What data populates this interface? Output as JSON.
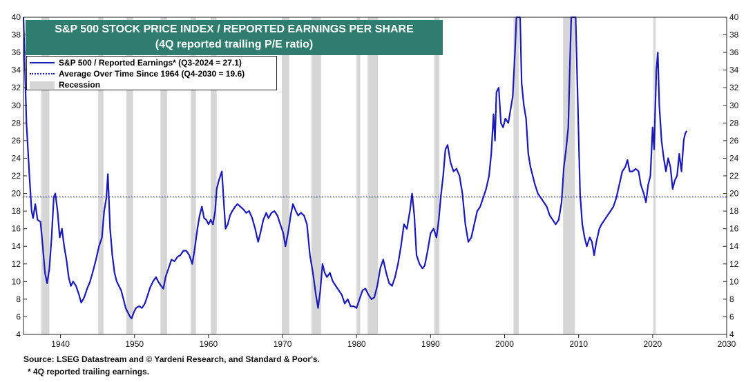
{
  "chart_data": {
    "type": "line",
    "title": "S&P 500 STOCK PRICE INDEX / REPORTED EARNINGS PER SHARE",
    "subtitle": "(4Q reported trailing P/E ratio)",
    "xlim": [
      1935,
      2030
    ],
    "ylim": [
      4,
      40
    ],
    "x_ticks": [
      1940,
      1950,
      1960,
      1970,
      1980,
      1990,
      2000,
      2010,
      2020,
      2030
    ],
    "y_ticks": [
      4,
      6,
      8,
      10,
      12,
      14,
      16,
      18,
      20,
      22,
      24,
      26,
      28,
      30,
      32,
      34,
      36,
      38,
      40
    ],
    "grid": false,
    "legend_position": "top-left",
    "legend": [
      {
        "label": "S&P 500 / Reported Earnings* (Q3-2024 = 27.1)",
        "style": "solid",
        "color": "#1a1ab8"
      },
      {
        "label": "Average Over Time Since 1964 (Q4-2030 = 19.6)",
        "style": "dotted",
        "color": "#1a1ab8"
      },
      {
        "label": "Recession",
        "style": "band",
        "color": "#d6d6d6"
      }
    ],
    "average_line": 19.6,
    "recessions": [
      [
        1937.4,
        1938.5
      ],
      [
        1945.1,
        1945.8
      ],
      [
        1948.9,
        1949.8
      ],
      [
        1953.5,
        1954.4
      ],
      [
        1957.6,
        1958.3
      ],
      [
        1960.3,
        1961.1
      ],
      [
        1969.9,
        1970.9
      ],
      [
        1973.9,
        1975.2
      ],
      [
        1980.0,
        1980.5
      ],
      [
        1981.5,
        1982.9
      ],
      [
        1990.5,
        1991.2
      ],
      [
        2001.2,
        2001.9
      ],
      [
        2007.9,
        2009.5
      ],
      [
        2020.1,
        2020.4
      ]
    ],
    "series": [
      {
        "name": "S&P 500 / Reported Earnings*",
        "color": "#1a1ab8",
        "points": [
          [
            1935.0,
            40
          ],
          [
            1935.4,
            28
          ],
          [
            1935.8,
            22
          ],
          [
            1936.1,
            18
          ],
          [
            1936.3,
            17.2
          ],
          [
            1936.6,
            18.8
          ],
          [
            1936.9,
            17.0
          ],
          [
            1937.3,
            16.8
          ],
          [
            1937.6,
            14
          ],
          [
            1937.9,
            11
          ],
          [
            1938.2,
            9.8
          ],
          [
            1938.5,
            11.5
          ],
          [
            1938.8,
            15
          ],
          [
            1939.1,
            19.6
          ],
          [
            1939.3,
            20
          ],
          [
            1939.6,
            18
          ],
          [
            1939.9,
            15
          ],
          [
            1940.2,
            16
          ],
          [
            1940.5,
            14
          ],
          [
            1940.8,
            12.5
          ],
          [
            1941.1,
            10.5
          ],
          [
            1941.4,
            9.5
          ],
          [
            1941.7,
            10
          ],
          [
            1942.1,
            9.5
          ],
          [
            1942.5,
            8.5
          ],
          [
            1942.8,
            7.6
          ],
          [
            1943.2,
            8.2
          ],
          [
            1943.6,
            9.2
          ],
          [
            1944.0,
            10
          ],
          [
            1944.4,
            11.2
          ],
          [
            1944.8,
            12.5
          ],
          [
            1945.2,
            14
          ],
          [
            1945.6,
            15
          ],
          [
            1945.9,
            18
          ],
          [
            1946.2,
            19.5
          ],
          [
            1946.4,
            22.2
          ],
          [
            1946.7,
            16
          ],
          [
            1947.0,
            13
          ],
          [
            1947.3,
            11
          ],
          [
            1947.6,
            10
          ],
          [
            1947.9,
            9.5
          ],
          [
            1948.2,
            9.0
          ],
          [
            1948.5,
            8.0
          ],
          [
            1948.8,
            7.0
          ],
          [
            1949.1,
            6.5
          ],
          [
            1949.4,
            6.0
          ],
          [
            1949.6,
            5.8
          ],
          [
            1949.9,
            6.5
          ],
          [
            1950.2,
            7.0
          ],
          [
            1950.6,
            7.2
          ],
          [
            1951.0,
            7.0
          ],
          [
            1951.4,
            7.5
          ],
          [
            1951.8,
            8.5
          ],
          [
            1952.1,
            9.3
          ],
          [
            1952.5,
            10.0
          ],
          [
            1952.9,
            10.5
          ],
          [
            1953.2,
            10.0
          ],
          [
            1953.6,
            9.5
          ],
          [
            1953.9,
            9.2
          ],
          [
            1954.2,
            10.5
          ],
          [
            1954.6,
            11.5
          ],
          [
            1955.0,
            12.5
          ],
          [
            1955.4,
            12.3
          ],
          [
            1955.8,
            12.8
          ],
          [
            1956.2,
            13.0
          ],
          [
            1956.6,
            13.5
          ],
          [
            1957.0,
            13.5
          ],
          [
            1957.4,
            13.0
          ],
          [
            1957.8,
            12.0
          ],
          [
            1958.1,
            13.5
          ],
          [
            1958.5,
            16.0
          ],
          [
            1958.8,
            17.5
          ],
          [
            1959.1,
            18.5
          ],
          [
            1959.4,
            17.2
          ],
          [
            1959.7,
            17.0
          ],
          [
            1960.0,
            16.5
          ],
          [
            1960.3,
            17.0
          ],
          [
            1960.6,
            16.5
          ],
          [
            1960.9,
            18.0
          ],
          [
            1961.1,
            20.5
          ],
          [
            1961.4,
            21.5
          ],
          [
            1961.8,
            22.5
          ],
          [
            1962.1,
            18.5
          ],
          [
            1962.3,
            16.0
          ],
          [
            1962.6,
            16.5
          ],
          [
            1962.9,
            17.5
          ],
          [
            1963.2,
            18.0
          ],
          [
            1963.6,
            18.5
          ],
          [
            1963.9,
            18.8
          ],
          [
            1964.3,
            18.5
          ],
          [
            1964.7,
            18.2
          ],
          [
            1965.1,
            17.8
          ],
          [
            1965.5,
            18.0
          ],
          [
            1965.9,
            17.2
          ],
          [
            1966.3,
            16.0
          ],
          [
            1966.7,
            14.5
          ],
          [
            1967.0,
            15.5
          ],
          [
            1967.4,
            17.0
          ],
          [
            1967.8,
            17.8
          ],
          [
            1968.1,
            17.2
          ],
          [
            1968.5,
            17.8
          ],
          [
            1968.9,
            18.0
          ],
          [
            1969.3,
            17.5
          ],
          [
            1969.7,
            16.5
          ],
          [
            1970.1,
            15.5
          ],
          [
            1970.4,
            14.0
          ],
          [
            1970.8,
            15.8
          ],
          [
            1971.1,
            17.5
          ],
          [
            1971.4,
            18.8
          ],
          [
            1971.8,
            18.0
          ],
          [
            1972.1,
            17.5
          ],
          [
            1972.5,
            17.8
          ],
          [
            1972.9,
            17.5
          ],
          [
            1973.3,
            16.5
          ],
          [
            1973.7,
            13.0
          ],
          [
            1974.1,
            11.0
          ],
          [
            1974.5,
            8.5
          ],
          [
            1974.8,
            7.0
          ],
          [
            1975.1,
            9.0
          ],
          [
            1975.4,
            12.0
          ],
          [
            1975.7,
            11.0
          ],
          [
            1976.0,
            10.5
          ],
          [
            1976.4,
            11.0
          ],
          [
            1976.8,
            10.0
          ],
          [
            1977.2,
            9.5
          ],
          [
            1977.6,
            9.0
          ],
          [
            1978.0,
            8.5
          ],
          [
            1978.4,
            7.5
          ],
          [
            1978.8,
            8.0
          ],
          [
            1979.2,
            7.2
          ],
          [
            1979.6,
            7.2
          ],
          [
            1980.0,
            7.0
          ],
          [
            1980.4,
            8.0
          ],
          [
            1980.8,
            9.0
          ],
          [
            1981.2,
            9.2
          ],
          [
            1981.6,
            8.5
          ],
          [
            1982.0,
            8.0
          ],
          [
            1982.4,
            8.2
          ],
          [
            1982.8,
            9.5
          ],
          [
            1983.2,
            11.5
          ],
          [
            1983.6,
            12.5
          ],
          [
            1984.0,
            11.0
          ],
          [
            1984.4,
            9.8
          ],
          [
            1984.8,
            9.5
          ],
          [
            1985.2,
            10.5
          ],
          [
            1985.6,
            12.0
          ],
          [
            1986.0,
            14.0
          ],
          [
            1986.4,
            16.5
          ],
          [
            1986.8,
            16.0
          ],
          [
            1987.2,
            18.0
          ],
          [
            1987.5,
            20.0
          ],
          [
            1987.8,
            17.5
          ],
          [
            1988.1,
            13.0
          ],
          [
            1988.5,
            12.0
          ],
          [
            1988.9,
            11.5
          ],
          [
            1989.2,
            11.8
          ],
          [
            1989.6,
            13.5
          ],
          [
            1990.0,
            15.5
          ],
          [
            1990.4,
            16.0
          ],
          [
            1990.8,
            15.0
          ],
          [
            1991.1,
            17.0
          ],
          [
            1991.4,
            19.8
          ],
          [
            1991.7,
            22.0
          ],
          [
            1992.0,
            25.0
          ],
          [
            1992.3,
            25.5
          ],
          [
            1992.7,
            23.5
          ],
          [
            1993.1,
            22.5
          ],
          [
            1993.5,
            22.8
          ],
          [
            1993.9,
            22.0
          ],
          [
            1994.3,
            20.0
          ],
          [
            1994.7,
            16.5
          ],
          [
            1995.1,
            14.5
          ],
          [
            1995.5,
            15.0
          ],
          [
            1995.9,
            16.5
          ],
          [
            1996.3,
            18.0
          ],
          [
            1996.7,
            18.5
          ],
          [
            1997.1,
            19.5
          ],
          [
            1997.5,
            20.5
          ],
          [
            1997.9,
            22.0
          ],
          [
            1998.2,
            24.5
          ],
          [
            1998.5,
            29.0
          ],
          [
            1998.7,
            26.0
          ],
          [
            1998.9,
            31.5
          ],
          [
            1999.2,
            32.0
          ],
          [
            1999.5,
            28.0
          ],
          [
            1999.8,
            27.5
          ],
          [
            2000.1,
            28.5
          ],
          [
            2000.5,
            28.0
          ],
          [
            2000.8,
            29.5
          ],
          [
            2001.1,
            31.0
          ],
          [
            2001.4,
            36.0
          ],
          [
            2001.6,
            40
          ],
          [
            2001.9,
            40
          ],
          [
            2002.1,
            40
          ],
          [
            2002.3,
            32.5
          ],
          [
            2002.6,
            30.0
          ],
          [
            2002.9,
            28.5
          ],
          [
            2003.2,
            24.5
          ],
          [
            2003.5,
            23.0
          ],
          [
            2003.8,
            22.0
          ],
          [
            2004.1,
            21.0
          ],
          [
            2004.5,
            20.0
          ],
          [
            2004.9,
            19.5
          ],
          [
            2005.3,
            19.0
          ],
          [
            2005.7,
            18.5
          ],
          [
            2006.1,
            17.5
          ],
          [
            2006.5,
            17.0
          ],
          [
            2006.9,
            16.5
          ],
          [
            2007.3,
            17.0
          ],
          [
            2007.7,
            19.0
          ],
          [
            2008.0,
            23.0
          ],
          [
            2008.3,
            25.0
          ],
          [
            2008.6,
            27.5
          ],
          [
            2008.8,
            34.0
          ],
          [
            2009.0,
            40
          ],
          [
            2009.3,
            40
          ],
          [
            2009.6,
            40
          ],
          [
            2009.9,
            30.0
          ],
          [
            2010.2,
            20.0
          ],
          [
            2010.5,
            16.5
          ],
          [
            2010.8,
            15.0
          ],
          [
            2011.1,
            14.0
          ],
          [
            2011.5,
            15.0
          ],
          [
            2011.8,
            14.5
          ],
          [
            2012.1,
            13.0
          ],
          [
            2012.4,
            14.5
          ],
          [
            2012.8,
            16.0
          ],
          [
            2013.1,
            16.5
          ],
          [
            2013.5,
            17.0
          ],
          [
            2013.9,
            17.5
          ],
          [
            2014.3,
            18.0
          ],
          [
            2014.7,
            18.5
          ],
          [
            2015.1,
            19.5
          ],
          [
            2015.5,
            21.0
          ],
          [
            2015.9,
            22.5
          ],
          [
            2016.3,
            23.0
          ],
          [
            2016.6,
            23.8
          ],
          [
            2016.9,
            22.5
          ],
          [
            2017.3,
            22.5
          ],
          [
            2017.7,
            22.8
          ],
          [
            2018.1,
            22.5
          ],
          [
            2018.4,
            21.0
          ],
          [
            2018.8,
            20.0
          ],
          [
            2019.1,
            19.0
          ],
          [
            2019.4,
            21.0
          ],
          [
            2019.7,
            22.0
          ],
          [
            2020.0,
            27.5
          ],
          [
            2020.2,
            25.0
          ],
          [
            2020.5,
            34.0
          ],
          [
            2020.7,
            36.0
          ],
          [
            2020.9,
            30.0
          ],
          [
            2021.2,
            26.0
          ],
          [
            2021.5,
            24.0
          ],
          [
            2021.8,
            22.5
          ],
          [
            2022.1,
            24.0
          ],
          [
            2022.4,
            23.0
          ],
          [
            2022.7,
            20.5
          ],
          [
            2023.0,
            21.5
          ],
          [
            2023.3,
            22.0
          ],
          [
            2023.6,
            24.5
          ],
          [
            2023.9,
            22.5
          ],
          [
            2024.2,
            26.0
          ],
          [
            2024.4,
            26.8
          ],
          [
            2024.6,
            27.1
          ]
        ]
      }
    ]
  },
  "source_note": "Source: LSEG Datastream and © Yardeni Research, and Standard & Poor's.",
  "footnote": "* 4Q reported trailing earnings.",
  "colors": {
    "line": "#1a1ab8",
    "title_bg": "#2e7d6e",
    "recession": "#d6d6d6"
  }
}
